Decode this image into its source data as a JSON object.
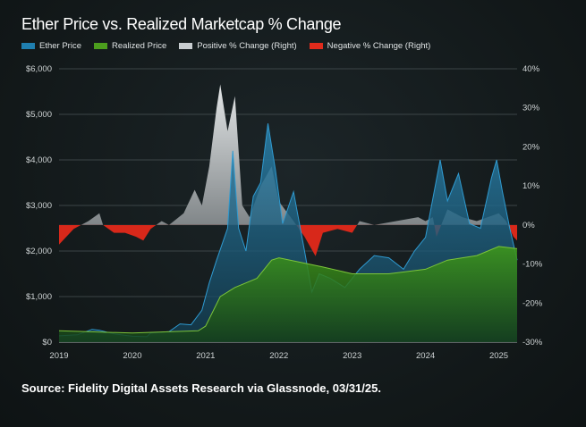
{
  "chart_data": {
    "type": "area",
    "title": "Ether Price vs. Realized Marketcap % Change",
    "legend": [
      {
        "name": "Ether Price",
        "color": "#1f7fb0"
      },
      {
        "name": "Realized Price",
        "color": "#4c9e1d"
      },
      {
        "name": "Positive % Change (Right)",
        "color": "#c8cdd0"
      },
      {
        "name": "Negative % Change (Right)",
        "color": "#e02b1c"
      }
    ],
    "legend_placement": "top-left",
    "x_ticks": [
      "2019",
      "2020",
      "2021",
      "2022",
      "2023",
      "2024",
      "2025"
    ],
    "xlim": [
      2019,
      2025.25
    ],
    "y_left": {
      "ticks": [
        "$0",
        "$1,000",
        "$2,000",
        "$3,000",
        "$4,000",
        "$5,000",
        "$6,000"
      ],
      "range": [
        0,
        6000
      ]
    },
    "y_right": {
      "ticks": [
        "-30%",
        "-20%",
        "-10%",
        "0%",
        "10%",
        "20%",
        "30%",
        "40%"
      ],
      "range": [
        -30,
        40
      ]
    },
    "grid": "horizontal",
    "series": [
      {
        "name": "Ether Price",
        "axis": "left",
        "x": [
          2019.0,
          2019.25,
          2019.45,
          2019.55,
          2019.75,
          2020.0,
          2020.2,
          2020.25,
          2020.5,
          2020.65,
          2020.8,
          2020.95,
          2021.05,
          2021.15,
          2021.3,
          2021.37,
          2021.45,
          2021.55,
          2021.65,
          2021.75,
          2021.85,
          2021.95,
          2022.05,
          2022.2,
          2022.35,
          2022.45,
          2022.55,
          2022.7,
          2022.9,
          2023.1,
          2023.3,
          2023.5,
          2023.7,
          2023.85,
          2024.0,
          2024.2,
          2024.3,
          2024.45,
          2024.6,
          2024.75,
          2024.9,
          2024.97,
          2025.05,
          2025.15,
          2025.25
        ],
        "values": [
          140,
          160,
          280,
          260,
          180,
          130,
          120,
          200,
          230,
          400,
          380,
          700,
          1300,
          1800,
          2500,
          4200,
          2500,
          2000,
          3200,
          3500,
          4800,
          3800,
          2600,
          3300,
          2000,
          1100,
          1500,
          1400,
          1200,
          1600,
          1900,
          1850,
          1600,
          2000,
          2300,
          4000,
          3100,
          3700,
          2600,
          2500,
          3600,
          4000,
          3300,
          2500,
          1800
        ]
      },
      {
        "name": "Realized Price",
        "axis": "left",
        "x": [
          2019.0,
          2020.0,
          2020.9,
          2021.0,
          2021.2,
          2021.4,
          2021.7,
          2021.9,
          2022.0,
          2022.3,
          2022.6,
          2023.0,
          2023.5,
          2024.0,
          2024.3,
          2024.7,
          2025.0,
          2025.25
        ],
        "values": [
          250,
          200,
          250,
          350,
          1000,
          1200,
          1400,
          1800,
          1850,
          1750,
          1650,
          1500,
          1500,
          1600,
          1800,
          1900,
          2100,
          2050
        ]
      },
      {
        "name": "Realized Marketcap % Change",
        "axis": "right",
        "x": [
          2019.0,
          2019.1,
          2019.2,
          2019.4,
          2019.55,
          2019.6,
          2019.75,
          2019.9,
          2020.05,
          2020.15,
          2020.25,
          2020.4,
          2020.5,
          2020.7,
          2020.85,
          2020.95,
          2021.05,
          2021.15,
          2021.2,
          2021.3,
          2021.4,
          2021.5,
          2021.6,
          2021.75,
          2021.9,
          2022.0,
          2022.2,
          2022.35,
          2022.5,
          2022.6,
          2022.8,
          2023.0,
          2023.1,
          2023.3,
          2023.6,
          2023.9,
          2024.0,
          2024.1,
          2024.15,
          2024.3,
          2024.5,
          2024.7,
          2025.0,
          2025.1,
          2025.2,
          2025.25
        ],
        "values": [
          -5,
          -3,
          -1,
          1,
          3,
          0,
          -2,
          -2,
          -3,
          -4,
          -1,
          1,
          0,
          3,
          9,
          5,
          15,
          30,
          36,
          24,
          33,
          5,
          2,
          10,
          15,
          6,
          1,
          -3,
          -8,
          -2,
          -1,
          -2,
          1,
          0,
          1,
          2,
          1,
          2,
          -3,
          4,
          2,
          1,
          3,
          1,
          -3,
          -4
        ]
      }
    ],
    "source": "Source: Fidelity Digital Assets Research via Glassnode, 03/31/25."
  }
}
